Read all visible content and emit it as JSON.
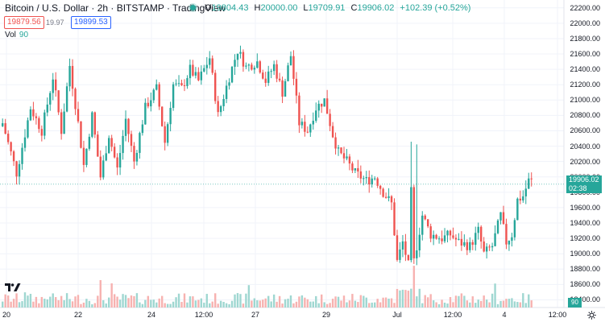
{
  "header": {
    "symbol": "Bitcoin / U.S. Dollar · 2h · BITSTAMP · TradingView",
    "ohlc": [
      {
        "k": "O",
        "v": "19804.43"
      },
      {
        "k": "H",
        "v": "20000.00"
      },
      {
        "k": "L",
        "v": "19709.91"
      },
      {
        "k": "C",
        "v": "19906.02"
      },
      {
        "k": "",
        "v": "+102.39 (+0.52%)"
      }
    ],
    "bid": "19879.56",
    "spread": "19.97",
    "ask": "19899.53",
    "vol_label": "Vol",
    "vol_value": "90"
  },
  "axis": {
    "last_price": "19906.02",
    "countdown": "02:38",
    "vol_value": "90"
  },
  "colors": {
    "up": "#26a69a",
    "down": "#ef5350",
    "up_vol": "#9fd7d1",
    "down_vol": "#f7b2b0",
    "grid": "#f0f3fa"
  },
  "icons": {
    "logo": "tradingview-logo-icon",
    "settings": "gear-icon"
  },
  "chart_data": {
    "type": "candlestick",
    "y_ticks": [
      "22200.00",
      "22000.00",
      "21800.00",
      "21600.00",
      "21400.00",
      "21200.00",
      "21000.00",
      "20800.00",
      "20600.00",
      "20400.00",
      "20200.00",
      "20000.00",
      "19800.00",
      "19600.00",
      "19400.00",
      "19200.00",
      "19000.00",
      "18800.00",
      "18600.00",
      "18400.00"
    ],
    "x_ticks": [
      "20",
      "22",
      "24",
      "12:00",
      "27",
      "29",
      "Jul",
      "12:00",
      "4",
      "12:00"
    ],
    "ylim": [
      18300,
      22250
    ],
    "anchors": [
      [
        0,
        20700
      ],
      [
        5,
        20050
      ],
      [
        10,
        20900
      ],
      [
        14,
        20600
      ],
      [
        18,
        21300
      ],
      [
        21,
        20600
      ],
      [
        24,
        21450
      ],
      [
        27,
        20700
      ],
      [
        29,
        20150
      ],
      [
        32,
        20800
      ],
      [
        35,
        20000
      ],
      [
        38,
        20550
      ],
      [
        41,
        20100
      ],
      [
        44,
        20750
      ],
      [
        47,
        20200
      ],
      [
        51,
        20900
      ],
      [
        55,
        21150
      ],
      [
        58,
        20450
      ],
      [
        61,
        21200
      ],
      [
        64,
        21150
      ],
      [
        67,
        21400
      ],
      [
        70,
        21250
      ],
      [
        74,
        21550
      ],
      [
        77,
        20800
      ],
      [
        81,
        21300
      ],
      [
        84,
        21650
      ],
      [
        87,
        21430
      ],
      [
        91,
        21500
      ],
      [
        94,
        21250
      ],
      [
        97,
        21450
      ],
      [
        100,
        21100
      ],
      [
        103,
        21580
      ],
      [
        106,
        20700
      ],
      [
        109,
        20600
      ],
      [
        112,
        20900
      ],
      [
        115,
        21000
      ],
      [
        118,
        20550
      ],
      [
        120,
        20320
      ],
      [
        123,
        20200
      ],
      [
        126,
        20050
      ],
      [
        130,
        19950
      ],
      [
        133,
        20000
      ],
      [
        136,
        19800
      ],
      [
        139,
        19650
      ],
      [
        141,
        18900
      ],
      [
        143,
        19150
      ],
      [
        145,
        18850
      ],
      [
        146,
        19800
      ],
      [
        147,
        18900
      ],
      [
        150,
        19500
      ],
      [
        153,
        19250
      ],
      [
        157,
        19200
      ],
      [
        160,
        19250
      ],
      [
        163,
        19150
      ],
      [
        167,
        19100
      ],
      [
        170,
        19300
      ],
      [
        172,
        19000
      ],
      [
        175,
        19100
      ],
      [
        178,
        19500
      ],
      [
        180,
        19150
      ],
      [
        182,
        19250
      ],
      [
        184,
        19700
      ],
      [
        186,
        19750
      ],
      [
        188,
        19950
      ]
    ],
    "spike_up": [
      [
        146,
        20350
      ],
      [
        148,
        20400
      ]
    ],
    "volume_spikes": [
      [
        8,
        2.6
      ],
      [
        17,
        2.3
      ],
      [
        35,
        2.0
      ],
      [
        39,
        1.8
      ],
      [
        88,
        2.0
      ],
      [
        146,
        3.2
      ],
      [
        147,
        2.6
      ],
      [
        176,
        1.9
      ]
    ]
  }
}
